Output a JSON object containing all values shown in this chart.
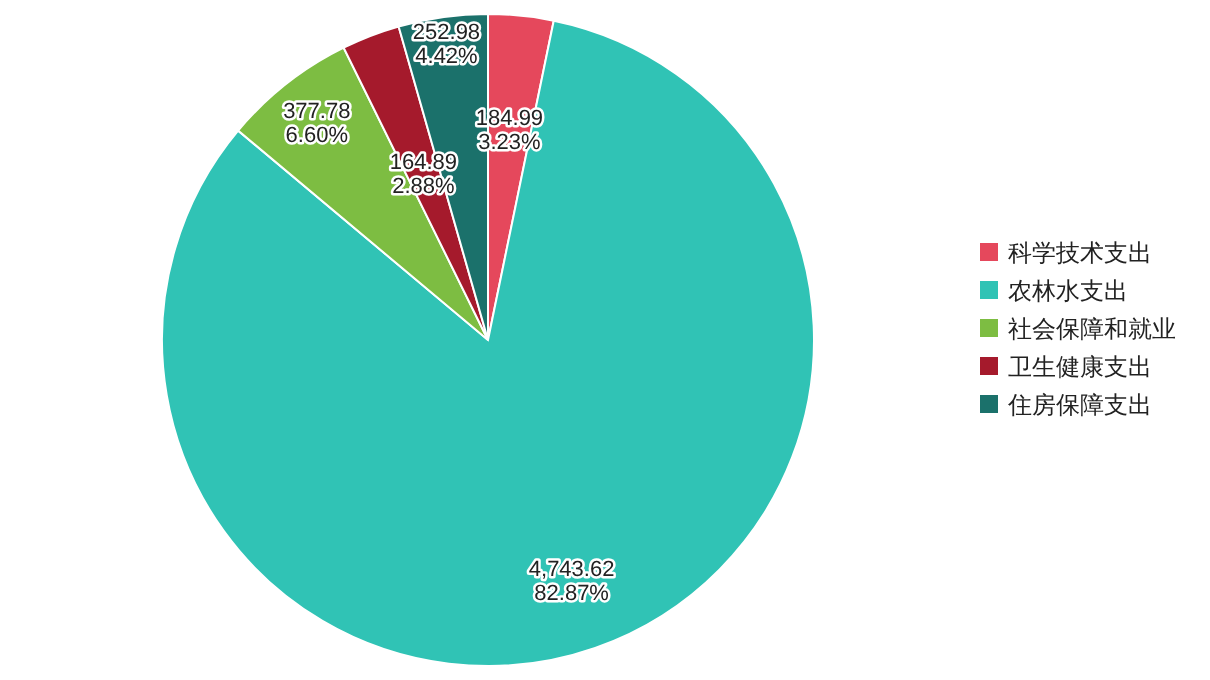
{
  "chart_data": {
    "type": "pie",
    "categories": [
      "科学技术支出",
      "农林水支出",
      "社会保障和就业",
      "卫生健康支出",
      "住房保障支出"
    ],
    "values": [
      184.99,
      4743.62,
      377.78,
      164.89,
      252.98
    ],
    "value_labels": [
      "184.99\n3.23%",
      "4,743.62\n82.87%",
      "377.78\n6.60%",
      "164.89\n2.88%",
      "252.98\n4.42%"
    ],
    "colors": [
      "#e5485c",
      "#30c3b5",
      "#7dbd42",
      "#a51a2c",
      "#1b716b"
    ],
    "legend": "right"
  }
}
